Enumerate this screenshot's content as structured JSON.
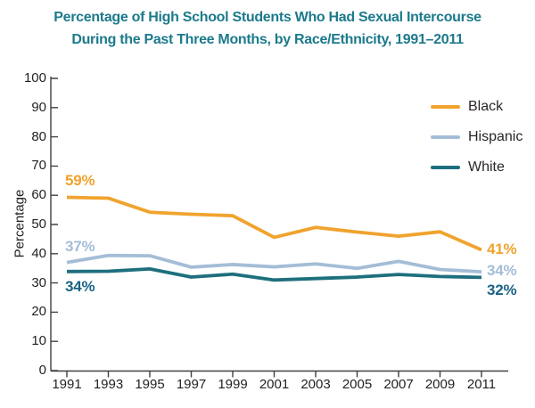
{
  "figure": {
    "title_line1": "Percentage of High School Students Who Had Sexual Intercourse",
    "title_line2": "During the Past Three Months, by Race/Ethnicity, 1991–2011",
    "title_color": "#1c7a8c"
  },
  "chart_data": {
    "type": "line",
    "title": "Percentage of High School Students Who Had Sexual Intercourse During the Past Three Months, by Race/Ethnicity, 1991–2011",
    "xlabel": "",
    "ylabel": "Percentage",
    "ylim": [
      0,
      100
    ],
    "yticks": [
      0,
      10,
      20,
      30,
      40,
      50,
      60,
      70,
      80,
      90,
      100
    ],
    "x": [
      1991,
      1993,
      1995,
      1997,
      1999,
      2001,
      2003,
      2005,
      2007,
      2009,
      2011
    ],
    "grid": false,
    "legend_position": "top-right",
    "series": [
      {
        "name": "Black",
        "color": "#f0a32e",
        "label_color": "#f0a32e",
        "values": [
          59.3,
          59.0,
          54.2,
          53.5,
          53.0,
          45.6,
          49.0,
          47.4,
          46.0,
          47.5,
          41.3
        ],
        "start_label": "59%",
        "end_label": "41%"
      },
      {
        "name": "Hispanic",
        "color": "#a4bdd7",
        "label_color": "#a4bdd7",
        "values": [
          37.0,
          39.4,
          39.3,
          35.4,
          36.3,
          35.5,
          36.5,
          35.0,
          37.4,
          34.6,
          33.8
        ],
        "start_label": "37%",
        "end_label": "34%"
      },
      {
        "name": "White",
        "color": "#1e6f7e",
        "label_color": "#1c6484",
        "values": [
          33.9,
          34.0,
          34.8,
          32.0,
          33.0,
          31.0,
          31.5,
          32.0,
          32.9,
          32.2,
          31.9
        ],
        "start_label": "34%",
        "end_label": "32%"
      }
    ]
  }
}
